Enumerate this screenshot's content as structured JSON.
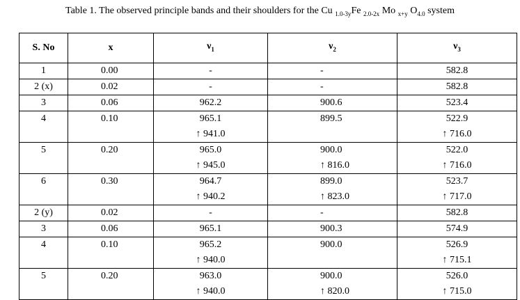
{
  "title": {
    "parts": [
      "Table 1. The observed principle bands and their shoulders for the Cu ",
      "1.0-3y",
      "Fe ",
      "2.0-2x",
      " Mo ",
      "x+y",
      " O",
      "4.0",
      " system"
    ]
  },
  "table": {
    "header": [
      [
        "S. No"
      ],
      [
        "x"
      ],
      [
        "ν",
        "1"
      ],
      [
        "ν",
        "2"
      ],
      [
        "ν",
        "3"
      ]
    ],
    "rows": [
      [
        "1",
        "0.00",
        "-",
        "-",
        "582.8"
      ],
      [
        "2 (x)",
        "0.02",
        "-",
        "-",
        "582.8"
      ],
      [
        "3",
        "0.06",
        "962.2",
        "900.6",
        "523.4"
      ],
      [
        "4",
        "0.10",
        [
          "965.1",
          "↑ 941.0"
        ],
        "899.5",
        [
          "522.9",
          "↑ 716.0"
        ]
      ],
      [
        "5",
        "0.20",
        [
          "965.0",
          "↑ 945.0"
        ],
        [
          "900.0",
          "↑ 816.0"
        ],
        [
          "522.0",
          "↑ 716.0"
        ]
      ],
      [
        "6",
        "0.30",
        [
          "964.7",
          "↑ 940.2"
        ],
        [
          "899.0",
          "↑ 823.0"
        ],
        [
          "523.7",
          "↑ 717.0"
        ]
      ],
      [
        "2 (y)",
        "0.02",
        "-",
        "-",
        "582.8"
      ],
      [
        "3",
        "0.06",
        "965.1",
        "900.3",
        "574.9"
      ],
      [
        "4",
        "0.10",
        [
          "965.2",
          "↑ 940.0"
        ],
        "900.0",
        [
          "526.9",
          "↑ 715.1"
        ]
      ],
      [
        "5",
        "0.20",
        [
          "963.0",
          "↑ 940.0"
        ],
        [
          "900.0",
          "↑ 820.0"
        ],
        [
          "526.0",
          "↑ 715.0"
        ]
      ]
    ]
  }
}
